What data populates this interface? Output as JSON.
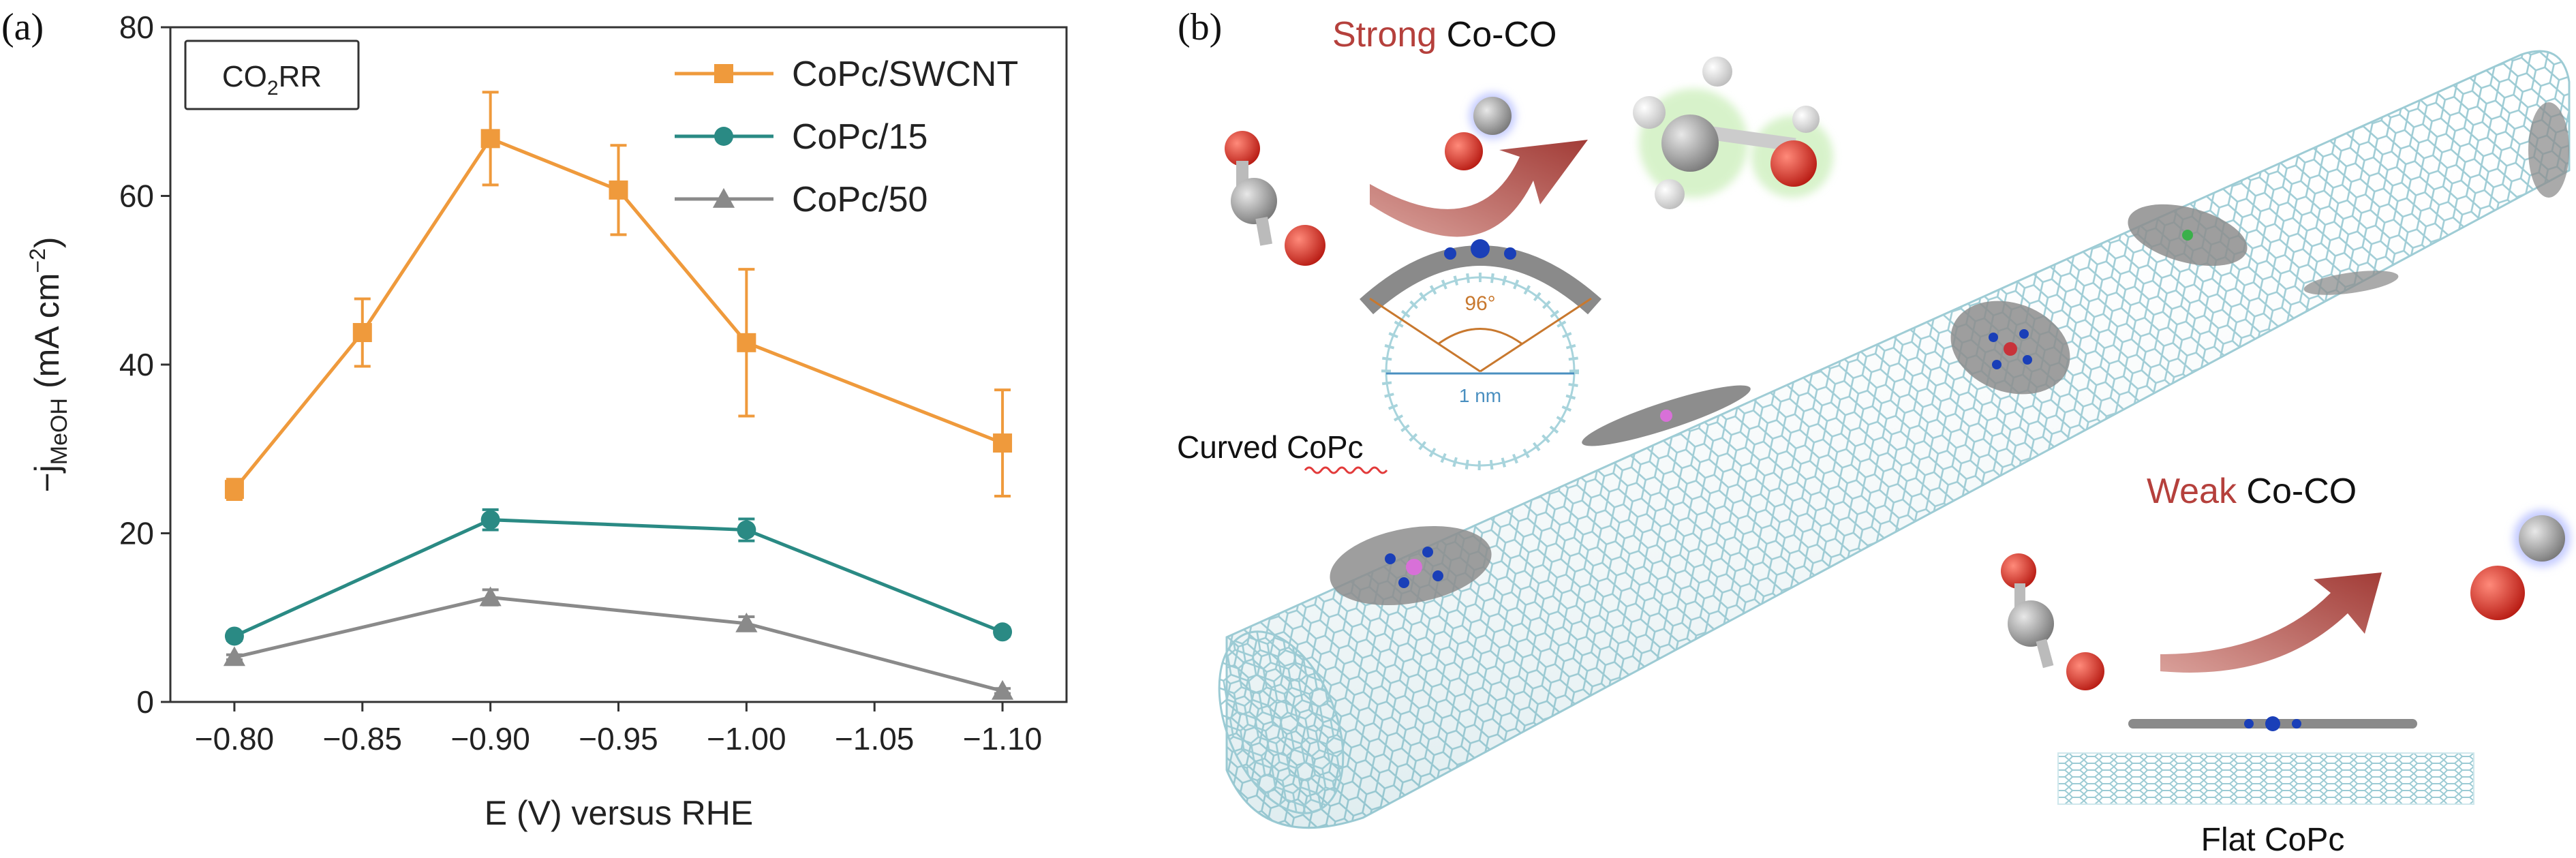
{
  "panels": {
    "a_label": "(a)",
    "b_label": "(b)"
  },
  "chart_data": {
    "type": "line",
    "title": "",
    "inset_label": {
      "prefix": "CO",
      "sub": "2",
      "suffix": "RR"
    },
    "xlabel": "E (V) versus RHE",
    "ylabel": {
      "prefix": "−j",
      "sub": "MeOH",
      "middle": " (mA cm",
      "sup": "−2",
      "suffix": ")"
    },
    "x_ticks": [
      -0.8,
      -0.85,
      -0.9,
      -0.95,
      -1.0,
      -1.05,
      -1.1
    ],
    "x_tick_labels": [
      "−0.80",
      "−0.85",
      "−0.90",
      "−0.95",
      "−1.00",
      "−1.05",
      "−1.10"
    ],
    "xlim": [
      -0.775,
      -1.125
    ],
    "x_direction": "reversed",
    "y_ticks": [
      0,
      20,
      40,
      60,
      80
    ],
    "y_tick_labels": [
      "0",
      "20",
      "40",
      "60",
      "80"
    ],
    "ylim": [
      0,
      80
    ],
    "grid": false,
    "legend_position": "top-right",
    "series": [
      {
        "name": "CoPc/SWCNT",
        "color": "#ef9a3c",
        "marker": "square",
        "x": [
          -0.8,
          -0.85,
          -0.9,
          -0.95,
          -1.0,
          -1.1
        ],
        "y": [
          25.2,
          43.8,
          66.8,
          60.7,
          42.6,
          30.7
        ],
        "err": [
          1.2,
          4.0,
          5.5,
          5.3,
          8.7,
          6.3
        ]
      },
      {
        "name": "CoPc/15",
        "color": "#2a8a84",
        "marker": "circle",
        "x": [
          -0.8,
          -0.9,
          -1.0,
          -1.1
        ],
        "y": [
          7.8,
          21.6,
          20.4,
          8.3
        ],
        "err": [
          0.5,
          1.2,
          1.3,
          0.5
        ]
      },
      {
        "name": "CoPc/50",
        "color": "#8a8a8a",
        "marker": "triangle",
        "x": [
          -0.8,
          -0.9,
          -1.0,
          -1.1
        ],
        "y": [
          5.3,
          12.4,
          9.3,
          1.3
        ],
        "err": [
          0.3,
          0.9,
          0.8,
          0.3
        ]
      }
    ]
  },
  "illustration": {
    "strong_word": "Strong",
    "strong_rest": " Co-CO",
    "weak_word": "Weak",
    "weak_rest": " Co-CO",
    "angle_label": "96°",
    "diameter_label": "1 nm",
    "curved_caption": "Curved CoPc",
    "flat_caption": "Flat CoPc",
    "colors": {
      "emphasis": "#b5403c",
      "tube": "#a8d4dc",
      "angle": "#c8782e",
      "diameter": "#4a8fc0",
      "cobalt": "#1a3fb8",
      "oxygen": "#d42a22",
      "carbon": "#a0a0a0",
      "hydrogen": "#f2f2f2",
      "arrow": "#a94540"
    }
  }
}
